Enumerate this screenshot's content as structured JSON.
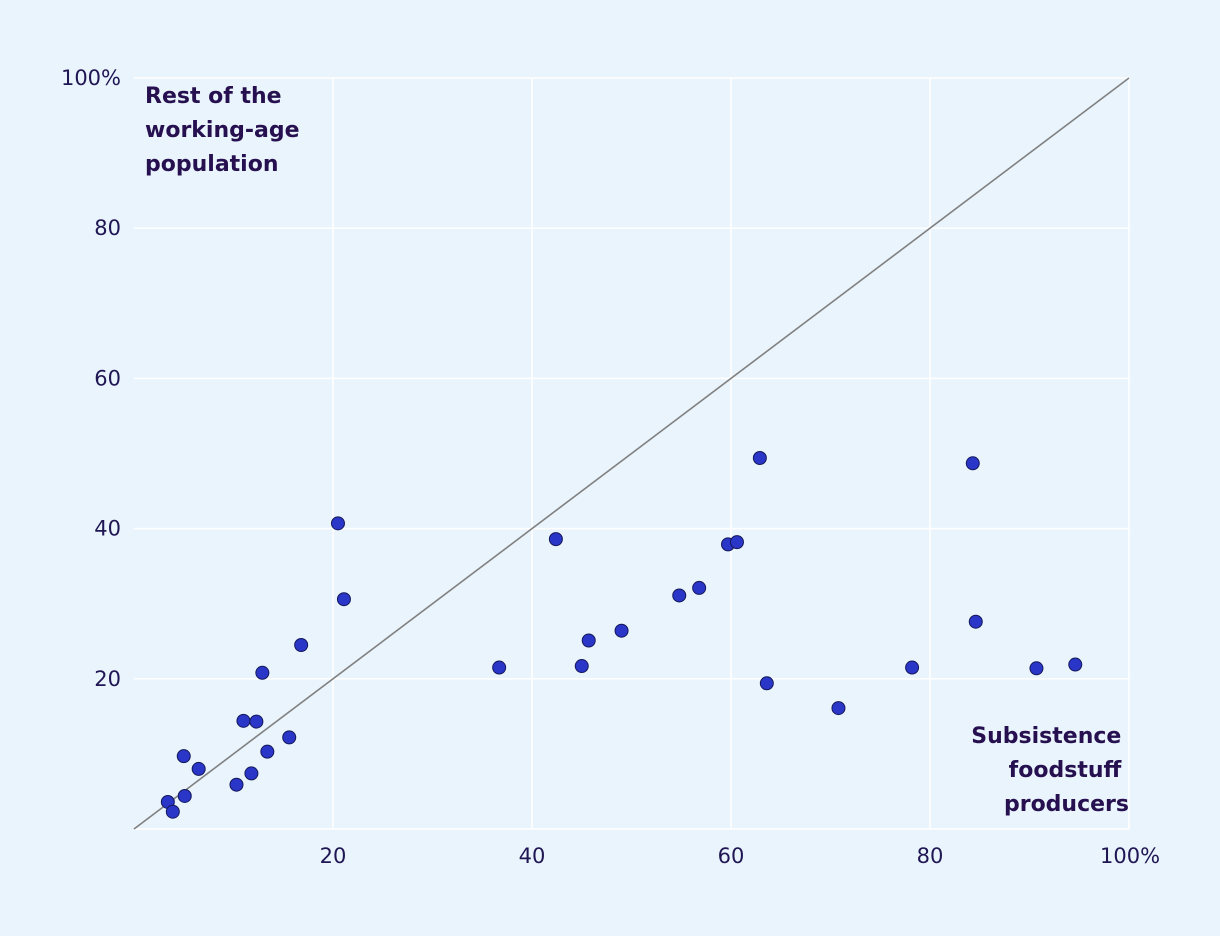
{
  "colors": {
    "background": "#eaf4fc",
    "grid": "#ffffff",
    "reference_line": "#808080",
    "point_fill": "#2a36c8",
    "point_stroke": "#14185a",
    "tick_text": "#1f1653",
    "label_text": "#26104f"
  },
  "chart_data": {
    "type": "scatter",
    "title": "",
    "xlabel": "Subsistence foodstuff producers",
    "ylabel": "Rest of the working-age population",
    "xlim": [
      0,
      100
    ],
    "ylim": [
      0,
      100
    ],
    "grid": true,
    "reference_line": {
      "from": [
        0,
        0
      ],
      "to": [
        100,
        100
      ]
    },
    "x_ticks": [
      "20",
      "40",
      "60",
      "80",
      "100%"
    ],
    "y_ticks": [
      "20",
      "40",
      "60",
      "80",
      "100%"
    ],
    "corner_labels": {
      "top_left": [
        "Rest of the",
        "working-age",
        "population"
      ],
      "bottom_right": [
        "Subsistence",
        "foodstuff",
        "producers"
      ]
    },
    "points": [
      {
        "x": 3.4,
        "y": 3.6
      },
      {
        "x": 3.9,
        "y": 2.3
      },
      {
        "x": 5.0,
        "y": 9.7
      },
      {
        "x": 5.1,
        "y": 4.4
      },
      {
        "x": 6.5,
        "y": 8.0
      },
      {
        "x": 10.3,
        "y": 5.9
      },
      {
        "x": 11.0,
        "y": 14.4
      },
      {
        "x": 11.8,
        "y": 7.4
      },
      {
        "x": 12.3,
        "y": 14.3
      },
      {
        "x": 12.9,
        "y": 20.8
      },
      {
        "x": 13.4,
        "y": 10.3
      },
      {
        "x": 15.6,
        "y": 12.2
      },
      {
        "x": 16.8,
        "y": 24.5
      },
      {
        "x": 20.5,
        "y": 40.7
      },
      {
        "x": 21.1,
        "y": 30.6
      },
      {
        "x": 36.7,
        "y": 21.5
      },
      {
        "x": 42.4,
        "y": 38.6
      },
      {
        "x": 45.0,
        "y": 21.7
      },
      {
        "x": 45.7,
        "y": 25.1
      },
      {
        "x": 49.0,
        "y": 26.4
      },
      {
        "x": 54.8,
        "y": 31.1
      },
      {
        "x": 56.8,
        "y": 32.1
      },
      {
        "x": 59.7,
        "y": 37.9
      },
      {
        "x": 60.6,
        "y": 38.2
      },
      {
        "x": 62.9,
        "y": 49.4
      },
      {
        "x": 63.6,
        "y": 19.4
      },
      {
        "x": 70.8,
        "y": 16.1
      },
      {
        "x": 78.2,
        "y": 21.5
      },
      {
        "x": 84.3,
        "y": 48.7
      },
      {
        "x": 84.6,
        "y": 27.6
      },
      {
        "x": 90.7,
        "y": 21.4
      },
      {
        "x": 94.6,
        "y": 21.9
      }
    ]
  }
}
